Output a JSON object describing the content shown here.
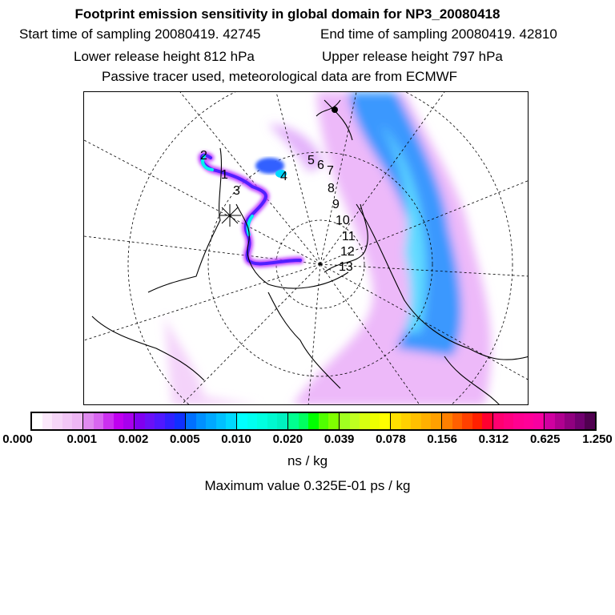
{
  "header": {
    "title": "Footprint emission sensitivity in global domain for NP3_20080418",
    "start_label": "Start time of sampling 20080419. 42745",
    "end_label": "End time of sampling 20080419. 42810",
    "lower_label": "Lower release height  812 hPa",
    "upper_label": "Upper release height  797 hPa",
    "tracer_label": "Passive tracer used, meteorological data are from ECMWF"
  },
  "map": {
    "day_labels": [
      "2",
      "1",
      "3",
      "4",
      "5",
      "6",
      "7",
      "8",
      "9",
      "10",
      "11",
      "12",
      "13"
    ],
    "plume_colors": [
      "#f0b0ff",
      "#c040ff",
      "#6020ff",
      "#1080ff",
      "#00f0f0"
    ]
  },
  "colorbar": {
    "tick_labels": [
      "0.000",
      "0.001",
      "0.002",
      "0.005",
      "0.010",
      "0.020",
      "0.039",
      "0.078",
      "0.156",
      "0.312",
      "0.625",
      "1.250"
    ],
    "segments": [
      [
        "#ffffff",
        "#fbe8fb",
        "#f6d6f8",
        "#f2c6f6",
        "#eeb6f4"
      ],
      [
        "#e08af0",
        "#d866f0",
        "#cc30f0",
        "#c000f0",
        "#a800ee"
      ],
      [
        "#8000f0",
        "#6a10f8",
        "#5018ff",
        "#3020ff",
        "#1030ff"
      ],
      [
        "#0070ff",
        "#0090ff",
        "#00a8ff",
        "#00c0ff",
        "#00d8ff"
      ],
      [
        "#00ffff",
        "#00fff0",
        "#00ffe0",
        "#00f8d0",
        "#00f0c0"
      ],
      [
        "#00ff90",
        "#00ff60",
        "#00ff00",
        "#50ff00",
        "#80ff00"
      ],
      [
        "#a0ff20",
        "#c0ff20",
        "#d8ff10",
        "#eeff00",
        "#ffff00"
      ],
      [
        "#ffe000",
        "#ffd000",
        "#ffc000",
        "#ffb000",
        "#ffa000"
      ],
      [
        "#ff8000",
        "#ff6000",
        "#ff4000",
        "#ff2000",
        "#ff0030"
      ],
      [
        "#ff0070",
        "#ff0080",
        "#ff0090",
        "#ff0098",
        "#f800a0"
      ],
      [
        "#d000a0",
        "#b00090",
        "#900080",
        "#700070",
        "#500050"
      ]
    ],
    "unit": "ns / kg",
    "max_value": "Maximum value  0.325E-01 ps / kg"
  }
}
